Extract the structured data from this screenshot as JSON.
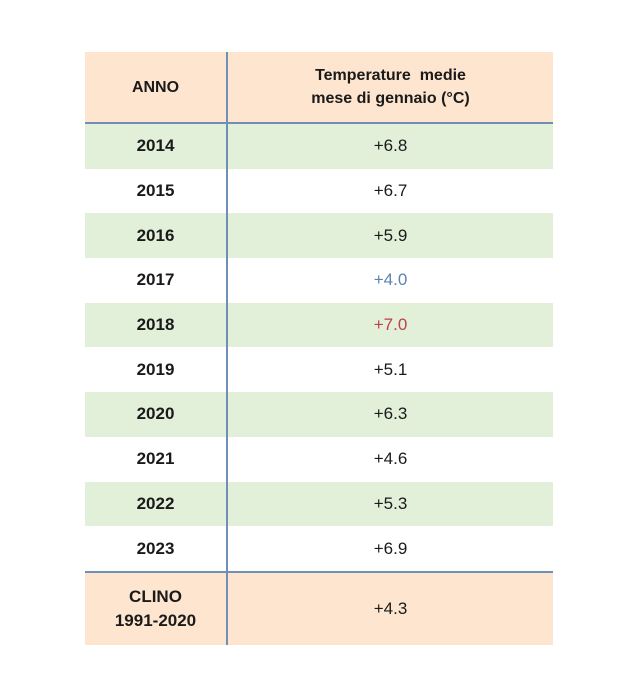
{
  "header": {
    "col_year": "ANNO",
    "col_value_line1": "Temperature  medie",
    "col_value_line2": "mese di gennaio (°C)"
  },
  "rows": [
    {
      "year": "2014",
      "value": "+6.8"
    },
    {
      "year": "2015",
      "value": "+6.7"
    },
    {
      "year": "2016",
      "value": "+5.9"
    },
    {
      "year": "2017",
      "value": "+4.0"
    },
    {
      "year": "2018",
      "value": "+7.0"
    },
    {
      "year": "2019",
      "value": "+5.1"
    },
    {
      "year": "2020",
      "value": "+6.3"
    },
    {
      "year": "2021",
      "value": "+4.6"
    },
    {
      "year": "2022",
      "value": "+5.3"
    },
    {
      "year": "2023",
      "value": "+6.9"
    }
  ],
  "footer": {
    "label_line1": "CLINO",
    "label_line2": "1991-2020",
    "value": "+4.3"
  },
  "colors": {
    "header_bg": "#fde5cf",
    "shade_bg": "#e2efd9",
    "divider": "#6f8fb6",
    "cold_highlight": "#5b84b1",
    "warm_highlight": "#c0404a"
  }
}
